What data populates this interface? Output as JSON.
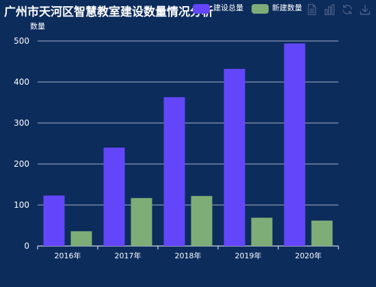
{
  "title": "广州市天河区智慧教室建设数量情况分析",
  "toolbox": {
    "icons": [
      "data-view-icon",
      "bar-chart-icon",
      "restore-icon",
      "save-image-icon"
    ]
  },
  "colors": {
    "background": "#0c2c5c",
    "series_total": "#6446fa",
    "series_new": "#7fad77",
    "axis": "#ffffff",
    "grid": "#ffffff",
    "text": "#ffffff",
    "toolbox": "#4c5f82"
  },
  "chart_data": {
    "type": "bar",
    "categories": [
      "2016年",
      "2017年",
      "2018年",
      "2019年",
      "2020年"
    ],
    "series": [
      {
        "name": "建设总量",
        "values": [
          123,
          240,
          363,
          432,
          494
        ]
      },
      {
        "name": "新建数量",
        "values": [
          36,
          117,
          122,
          69,
          62
        ]
      }
    ],
    "ylabel": "数量",
    "xlabel": "",
    "ylim": [
      0,
      500
    ],
    "yticks": [
      0,
      100,
      200,
      300,
      400,
      500
    ],
    "grid": true,
    "legend": "top-right"
  }
}
